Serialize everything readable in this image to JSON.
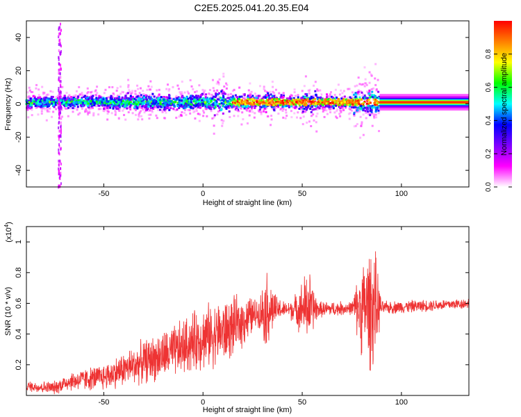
{
  "title": "C2E5.2025.041.20.35.E04",
  "chart_data": [
    {
      "type": "heatmap",
      "xlabel": "Height of straight line (km)",
      "ylabel": "Frequency (Hz)",
      "xlim": [
        -89,
        134
      ],
      "ylim": [
        -50,
        50
      ],
      "x_ticks": [
        -50,
        0,
        50,
        100
      ],
      "y_ticks": [
        -40,
        -20,
        0,
        20,
        40
      ],
      "colorbar": {
        "label": "Normalized spectral amplitude",
        "range": [
          0,
          1
        ],
        "ticks": [
          "0.0",
          "0.2",
          "0.4",
          "0.6",
          "0.8"
        ],
        "colors": [
          "#ffffff",
          "#ff00ff",
          "#7f00ff",
          "#0000ff",
          "#00ffff",
          "#00ff00",
          "#ffff00",
          "#ff7f00",
          "#ff0000"
        ]
      },
      "features": {
        "band_center_hz": 1,
        "continuous_band_start_km": 89,
        "spike_line_km": -72
      }
    },
    {
      "type": "line",
      "xlabel": "Height of straight line (km)",
      "ylabel": "SNR (10 * v/v)",
      "y_multiplier_label": "(x10",
      "y_multiplier_exp": "4",
      "y_multiplier_close": ")",
      "xlim": [
        -89,
        134
      ],
      "ylim": [
        0,
        1.1
      ],
      "x_ticks": [
        -50,
        0,
        50,
        100
      ],
      "y_ticks": [
        0.2,
        0.4,
        0.6,
        0.8,
        1
      ],
      "series": [
        {
          "color": "#ee3333",
          "points": [
            {
              "x": -89,
              "base": 0.06,
              "amp": 0.04
            },
            {
              "x": -75,
              "base": 0.05,
              "amp": 0.05
            },
            {
              "x": -68,
              "base": 0.09,
              "amp": 0.07
            },
            {
              "x": -50,
              "base": 0.12,
              "amp": 0.1
            },
            {
              "x": -30,
              "base": 0.22,
              "amp": 0.16
            },
            {
              "x": -15,
              "base": 0.28,
              "amp": 0.2
            },
            {
              "x": 0,
              "base": 0.38,
              "amp": 0.24
            },
            {
              "x": 12,
              "base": 0.42,
              "amp": 0.24
            },
            {
              "x": 22,
              "base": 0.5,
              "amp": 0.18
            },
            {
              "x": 28,
              "base": 0.54,
              "amp": 0.1
            },
            {
              "x": 32,
              "base": 0.56,
              "amp": 0.3
            },
            {
              "x": 37,
              "base": 0.56,
              "amp": 0.1
            },
            {
              "x": 42,
              "base": 0.56,
              "amp": 0.05
            },
            {
              "x": 47,
              "base": 0.56,
              "amp": 0.12
            },
            {
              "x": 53,
              "base": 0.58,
              "amp": 0.3
            },
            {
              "x": 58,
              "base": 0.56,
              "amp": 0.06
            },
            {
              "x": 75,
              "base": 0.57,
              "amp": 0.05
            },
            {
              "x": 80,
              "base": 0.57,
              "amp": 0.35
            },
            {
              "x": 86,
              "base": 0.58,
              "amp": 0.5
            },
            {
              "x": 90,
              "base": 0.57,
              "amp": 0.05
            },
            {
              "x": 134,
              "base": 0.6,
              "amp": 0.04
            }
          ]
        }
      ]
    }
  ]
}
